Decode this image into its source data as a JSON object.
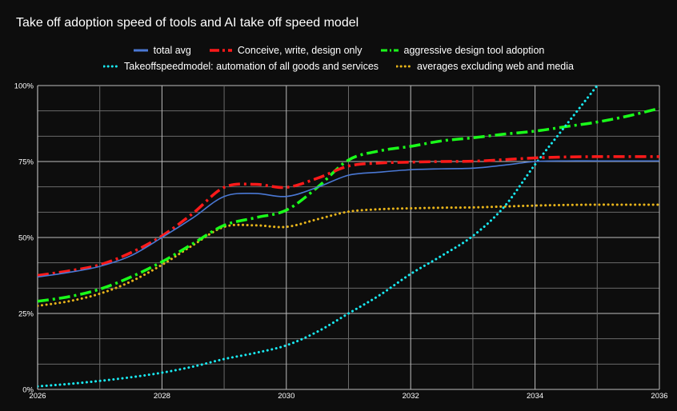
{
  "chart_data": {
    "type": "line",
    "title": "Take off adoption speed of tools and AI take off speed model",
    "xlabel": "",
    "ylabel": "",
    "xlim": [
      2026,
      2036
    ],
    "ylim": [
      0,
      100
    ],
    "x_ticks": [
      "2026",
      "2028",
      "2030",
      "2032",
      "2034",
      "2036"
    ],
    "y_ticks": [
      "0%",
      "25%",
      "50%",
      "75%",
      "100%"
    ],
    "grid": true,
    "legend_position": "top-center",
    "series": [
      {
        "name": "total avg",
        "color": "#4a78d4",
        "style": "solid",
        "x": [
          2026,
          2026.5,
          2027,
          2027.5,
          2028,
          2028.5,
          2029,
          2029.5,
          2030,
          2030.5,
          2031,
          2031.5,
          2032,
          2032.5,
          2033,
          2033.5,
          2034,
          2034.5,
          2035,
          2035.5,
          2036
        ],
        "values": [
          37,
          38.5,
          40.5,
          44,
          50,
          56.5,
          63.5,
          64.5,
          63.5,
          66.5,
          70.5,
          71.5,
          72.3,
          72.6,
          72.8,
          73.8,
          75,
          75.2,
          75.2,
          75.2,
          75.2
        ]
      },
      {
        "name": "Conceive, write, design only",
        "color": "#ff1a1a",
        "style": "dashdot",
        "x": [
          2026,
          2026.5,
          2027,
          2027.5,
          2028,
          2028.5,
          2029,
          2029.5,
          2030,
          2030.5,
          2031,
          2031.5,
          2032,
          2032.5,
          2033,
          2033.5,
          2034,
          2034.5,
          2035,
          2035.5,
          2036
        ],
        "values": [
          37.5,
          39,
          41,
          45,
          50.5,
          58,
          66.5,
          67.5,
          66.5,
          69.5,
          73.5,
          74.5,
          74.8,
          75,
          75.1,
          75.6,
          76.2,
          76.5,
          76.6,
          76.6,
          76.6
        ]
      },
      {
        "name": "aggressive design tool adoption",
        "color": "#1aff1a",
        "style": "dashdot",
        "x": [
          2026,
          2026.5,
          2027,
          2027.5,
          2028,
          2028.5,
          2029,
          2029.5,
          2030,
          2030.5,
          2031,
          2031.5,
          2032,
          2032.5,
          2033,
          2033.5,
          2034,
          2034.5,
          2035,
          2035.5,
          2036
        ],
        "values": [
          29,
          30.5,
          33,
          37,
          42,
          48,
          54,
          56.5,
          59,
          66.5,
          75.5,
          78.5,
          80,
          81.8,
          82.8,
          84,
          85,
          86.5,
          88,
          90,
          92.5
        ]
      },
      {
        "name": "Takeoffspeedmodel: automation of all goods and services",
        "color": "#19e8f0",
        "style": "dotted",
        "x": [
          2026,
          2026.5,
          2027,
          2027.5,
          2028,
          2028.5,
          2029,
          2029.5,
          2030,
          2030.5,
          2031,
          2031.5,
          2032,
          2032.5,
          2033,
          2033.5,
          2034,
          2034.5,
          2035
        ],
        "values": [
          1,
          1.8,
          2.8,
          4,
          5.5,
          7.5,
          10,
          12,
          14.5,
          19,
          25,
          31,
          38,
          44,
          50.5,
          60,
          74,
          87,
          100
        ]
      },
      {
        "name": "averages excluding web and media",
        "color": "#e8b41a",
        "style": "dotted",
        "x": [
          2026,
          2026.5,
          2027,
          2027.5,
          2028,
          2028.5,
          2029,
          2029.5,
          2030,
          2030.5,
          2031,
          2031.5,
          2032,
          2032.5,
          2033,
          2033.5,
          2034,
          2034.5,
          2035,
          2035.5,
          2036
        ],
        "values": [
          27.5,
          29,
          31.5,
          35.5,
          41,
          47.5,
          53.5,
          54,
          53.5,
          56,
          58.5,
          59.3,
          59.6,
          59.8,
          59.9,
          60.2,
          60.5,
          60.7,
          60.8,
          60.8,
          60.8
        ]
      }
    ]
  }
}
